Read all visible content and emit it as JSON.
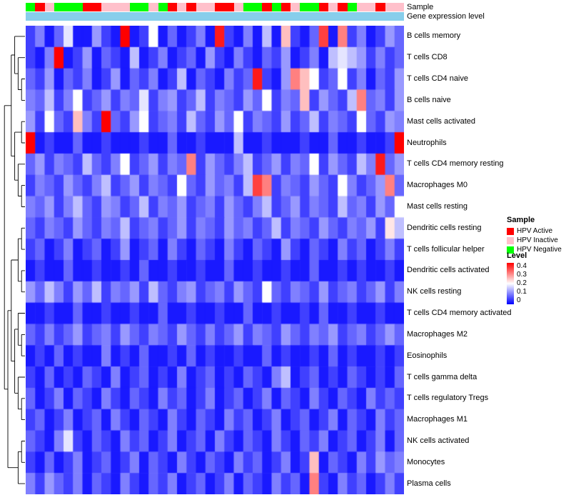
{
  "annotations": {
    "sample_label": "Sample",
    "gene_label": "Gene expression level",
    "gene_bar_color": "#87CEEB",
    "sample_colors": {
      "HPV Active": "#FF0000",
      "HPV Inactive": "#FFC0CB",
      "HPV Negative": "#00FF00"
    }
  },
  "legend": {
    "sample_title": "Sample",
    "sample_items": [
      {
        "label": "HPV Active",
        "color": "#FF0000"
      },
      {
        "label": "HPV Inactive",
        "color": "#FFC0CB"
      },
      {
        "label": "HPV Negative",
        "color": "#00FF00"
      }
    ],
    "level_title": "Level",
    "level_ticks": [
      "0.4",
      "0.3",
      "0.2",
      "0.1",
      "0"
    ],
    "level_colors": {
      "high": "#FF0000",
      "mid": "#FFFFFF",
      "low": "#0000FF"
    }
  },
  "chart_data": {
    "type": "heatmap",
    "title": "",
    "xlabel": "",
    "ylabel": "",
    "value_range": [
      0,
      0.4
    ],
    "color_scale": [
      {
        "value": 0,
        "color": "#0000FF"
      },
      {
        "value": 0.2,
        "color": "#FFFFFF"
      },
      {
        "value": 0.4,
        "color": "#FF0000"
      }
    ],
    "rows": [
      "B cells memory",
      "T cells CD8",
      "T cells CD4 naive",
      "B cells naive",
      "Mast cells activated",
      "Neutrophils",
      "T cells CD4 memory resting",
      "Macrophages M0",
      "Mast cells resting",
      "Dendritic cells resting",
      "T cells follicular helper",
      "Dendritic cells activated",
      "NK cells resting",
      "T cells CD4 memory activated",
      "Macrophages M2",
      "Eosinophils",
      "T cells gamma delta",
      "T cells regulatory  Tregs",
      "Macrophages M1",
      "NK cells activated",
      "Monocytes",
      "Plasma cells"
    ],
    "n_columns": 40,
    "column_annotation": [
      "HPV Negative",
      "HPV Active",
      "HPV Inactive",
      "HPV Negative",
      "HPV Negative",
      "HPV Negative",
      "HPV Active",
      "HPV Active",
      "HPV Inactive",
      "HPV Inactive",
      "HPV Inactive",
      "HPV Negative",
      "HPV Negative",
      "HPV Inactive",
      "HPV Negative",
      "HPV Active",
      "HPV Inactive",
      "HPV Active",
      "HPV Inactive",
      "HPV Inactive",
      "HPV Active",
      "HPV Active",
      "HPV Inactive",
      "HPV Negative",
      "HPV Negative",
      "HPV Active",
      "HPV Negative",
      "HPV Active",
      "HPV Inactive",
      "HPV Negative",
      "HPV Negative",
      "HPV Active",
      "HPV Inactive",
      "HPV Active",
      "HPV Negative",
      "HPV Inactive",
      "HPV Inactive",
      "HPV Active",
      "HPV Inactive",
      "HPV Inactive"
    ],
    "values": [
      [
        0.05,
        0.1,
        0.02,
        0.08,
        0.18,
        0.02,
        0.02,
        0.12,
        0.05,
        0.02,
        0.42,
        0.02,
        0.05,
        0.2,
        0.02,
        0.08,
        0.02,
        0.05,
        0.1,
        0.02,
        0.38,
        0.05,
        0.02,
        0.1,
        0.02,
        0.15,
        0.02,
        0.25,
        0.05,
        0.02,
        0.08,
        0.35,
        0.02,
        0.3,
        0.05,
        0.1,
        0.02,
        0.05,
        0.12,
        0.08
      ],
      [
        0.05,
        0.02,
        0.1,
        0.4,
        0.02,
        0.05,
        0.12,
        0.02,
        0.08,
        0.05,
        0.02,
        0.15,
        0.02,
        0.05,
        0.1,
        0.02,
        0.05,
        0.08,
        0.02,
        0.12,
        0.05,
        0.02,
        0.1,
        0.05,
        0.02,
        0.08,
        0.05,
        0.12,
        0.02,
        0.05,
        0.1,
        0.02,
        0.15,
        0.18,
        0.15,
        0.12,
        0.05,
        0.1,
        0.05,
        0.08
      ],
      [
        0.08,
        0.05,
        0.12,
        0.02,
        0.08,
        0.05,
        0.1,
        0.02,
        0.05,
        0.12,
        0.02,
        0.08,
        0.05,
        0.1,
        0.02,
        0.05,
        0.15,
        0.02,
        0.08,
        0.05,
        0.02,
        0.1,
        0.05,
        0.08,
        0.38,
        0.05,
        0.02,
        0.12,
        0.3,
        0.25,
        0.2,
        0.05,
        0.08,
        0.2,
        0.05,
        0.1,
        0.02,
        0.08,
        0.05,
        0.12
      ],
      [
        0.1,
        0.08,
        0.15,
        0.05,
        0.1,
        0.2,
        0.05,
        0.08,
        0.12,
        0.05,
        0.1,
        0.08,
        0.18,
        0.05,
        0.1,
        0.12,
        0.05,
        0.08,
        0.15,
        0.05,
        0.1,
        0.08,
        0.05,
        0.12,
        0.08,
        0.2,
        0.05,
        0.1,
        0.08,
        0.25,
        0.05,
        0.12,
        0.08,
        0.05,
        0.15,
        0.3,
        0.08,
        0.1,
        0.05,
        0.12
      ],
      [
        0.12,
        0.05,
        0.2,
        0.08,
        0.05,
        0.25,
        0.1,
        0.05,
        0.4,
        0.08,
        0.05,
        0.12,
        0.2,
        0.05,
        0.08,
        0.1,
        0.05,
        0.15,
        0.08,
        0.05,
        0.12,
        0.08,
        0.2,
        0.05,
        0.1,
        0.08,
        0.05,
        0.12,
        0.05,
        0.08,
        0.15,
        0.05,
        0.1,
        0.08,
        0.05,
        0.2,
        0.08,
        0.05,
        0.12,
        0.1
      ],
      [
        0.45,
        0.02,
        0.05,
        0.02,
        0.02,
        0.08,
        0.02,
        0.02,
        0.05,
        0.02,
        0.02,
        0.02,
        0.05,
        0.02,
        0.02,
        0.08,
        0.02,
        0.02,
        0.05,
        0.02,
        0.02,
        0.02,
        0.15,
        0.02,
        0.02,
        0.05,
        0.02,
        0.02,
        0.02,
        0.05,
        0.02,
        0.02,
        0.08,
        0.02,
        0.02,
        0.05,
        0.02,
        0.02,
        0.05,
        0.42
      ],
      [
        0.08,
        0.12,
        0.05,
        0.1,
        0.08,
        0.05,
        0.15,
        0.08,
        0.05,
        0.1,
        0.2,
        0.05,
        0.08,
        0.12,
        0.05,
        0.1,
        0.08,
        0.3,
        0.05,
        0.12,
        0.08,
        0.05,
        0.1,
        0.15,
        0.05,
        0.08,
        0.12,
        0.05,
        0.1,
        0.08,
        0.2,
        0.05,
        0.12,
        0.08,
        0.05,
        0.15,
        0.1,
        0.38,
        0.08,
        0.12
      ],
      [
        0.05,
        0.1,
        0.08,
        0.05,
        0.12,
        0.08,
        0.05,
        0.1,
        0.15,
        0.05,
        0.08,
        0.12,
        0.05,
        0.1,
        0.08,
        0.05,
        0.2,
        0.08,
        0.05,
        0.12,
        0.08,
        0.1,
        0.05,
        0.15,
        0.35,
        0.3,
        0.05,
        0.1,
        0.08,
        0.05,
        0.12,
        0.08,
        0.05,
        0.2,
        0.1,
        0.05,
        0.08,
        0.12,
        0.3,
        0.08
      ],
      [
        0.1,
        0.08,
        0.12,
        0.05,
        0.1,
        0.15,
        0.08,
        0.05,
        0.12,
        0.1,
        0.05,
        0.08,
        0.15,
        0.05,
        0.1,
        0.08,
        0.12,
        0.05,
        0.08,
        0.1,
        0.05,
        0.12,
        0.08,
        0.05,
        0.1,
        0.15,
        0.05,
        0.08,
        0.12,
        0.05,
        0.1,
        0.08,
        0.05,
        0.15,
        0.08,
        0.1,
        0.05,
        0.12,
        0.08,
        0.2
      ],
      [
        0.08,
        0.05,
        0.1,
        0.08,
        0.05,
        0.12,
        0.08,
        0.05,
        0.1,
        0.08,
        0.15,
        0.05,
        0.08,
        0.1,
        0.05,
        0.08,
        0.12,
        0.05,
        0.1,
        0.08,
        0.05,
        0.12,
        0.08,
        0.1,
        0.05,
        0.08,
        0.15,
        0.05,
        0.1,
        0.08,
        0.05,
        0.12,
        0.08,
        0.05,
        0.1,
        0.08,
        0.12,
        0.05,
        0.22,
        0.15
      ],
      [
        0.05,
        0.08,
        0.02,
        0.05,
        0.1,
        0.02,
        0.05,
        0.08,
        0.02,
        0.05,
        0.12,
        0.02,
        0.05,
        0.08,
        0.02,
        0.1,
        0.05,
        0.02,
        0.08,
        0.05,
        0.02,
        0.1,
        0.05,
        0.02,
        0.08,
        0.05,
        0.02,
        0.12,
        0.05,
        0.02,
        0.08,
        0.05,
        0.02,
        0.1,
        0.05,
        0.08,
        0.02,
        0.05,
        0.1,
        0.05
      ],
      [
        0.02,
        0.05,
        0.02,
        0.02,
        0.08,
        0.02,
        0.02,
        0.05,
        0.02,
        0.02,
        0.05,
        0.02,
        0.08,
        0.02,
        0.02,
        0.05,
        0.02,
        0.02,
        0.05,
        0.02,
        0.02,
        0.08,
        0.02,
        0.02,
        0.05,
        0.02,
        0.02,
        0.05,
        0.02,
        0.02,
        0.08,
        0.02,
        0.02,
        0.05,
        0.02,
        0.05,
        0.02,
        0.02,
        0.05,
        0.02
      ],
      [
        0.12,
        0.08,
        0.15,
        0.1,
        0.05,
        0.12,
        0.08,
        0.15,
        0.05,
        0.1,
        0.08,
        0.12,
        0.05,
        0.15,
        0.08,
        0.05,
        0.1,
        0.12,
        0.05,
        0.08,
        0.1,
        0.05,
        0.12,
        0.08,
        0.05,
        0.2,
        0.08,
        0.05,
        0.1,
        0.08,
        0.05,
        0.12,
        0.05,
        0.08,
        0.1,
        0.05,
        0.08,
        0.12,
        0.05,
        0.1
      ],
      [
        0.02,
        0.02,
        0.05,
        0.02,
        0.02,
        0.08,
        0.02,
        0.02,
        0.05,
        0.02,
        0.02,
        0.05,
        0.02,
        0.02,
        0.08,
        0.02,
        0.02,
        0.05,
        0.02,
        0.02,
        0.05,
        0.02,
        0.02,
        0.08,
        0.02,
        0.02,
        0.05,
        0.02,
        0.02,
        0.05,
        0.02,
        0.08,
        0.02,
        0.02,
        0.05,
        0.02,
        0.02,
        0.05,
        0.02,
        0.02
      ],
      [
        0.08,
        0.05,
        0.1,
        0.05,
        0.08,
        0.12,
        0.05,
        0.08,
        0.1,
        0.05,
        0.12,
        0.08,
        0.05,
        0.1,
        0.08,
        0.05,
        0.12,
        0.08,
        0.05,
        0.1,
        0.05,
        0.08,
        0.12,
        0.05,
        0.1,
        0.08,
        0.05,
        0.12,
        0.08,
        0.05,
        0.1,
        0.08,
        0.12,
        0.05,
        0.08,
        0.1,
        0.05,
        0.08,
        0.12,
        0.08
      ],
      [
        0.02,
        0.05,
        0.02,
        0.08,
        0.02,
        0.05,
        0.02,
        0.02,
        0.1,
        0.02,
        0.05,
        0.02,
        0.08,
        0.02,
        0.02,
        0.05,
        0.02,
        0.08,
        0.02,
        0.05,
        0.02,
        0.02,
        0.05,
        0.02,
        0.02,
        0.08,
        0.02,
        0.05,
        0.02,
        0.02,
        0.05,
        0.02,
        0.08,
        0.02,
        0.05,
        0.02,
        0.02,
        0.05,
        0.02,
        0.05
      ],
      [
        0.05,
        0.02,
        0.08,
        0.02,
        0.05,
        0.02,
        0.08,
        0.05,
        0.02,
        0.1,
        0.02,
        0.05,
        0.08,
        0.02,
        0.05,
        0.02,
        0.1,
        0.02,
        0.05,
        0.08,
        0.02,
        0.05,
        0.02,
        0.08,
        0.05,
        0.02,
        0.1,
        0.15,
        0.02,
        0.05,
        0.08,
        0.02,
        0.05,
        0.02,
        0.08,
        0.05,
        0.02,
        0.05,
        0.02,
        0.08
      ],
      [
        0.08,
        0.02,
        0.05,
        0.1,
        0.02,
        0.08,
        0.05,
        0.02,
        0.1,
        0.05,
        0.02,
        0.08,
        0.05,
        0.02,
        0.1,
        0.05,
        0.08,
        0.02,
        0.05,
        0.1,
        0.02,
        0.05,
        0.08,
        0.02,
        0.05,
        0.1,
        0.02,
        0.08,
        0.05,
        0.02,
        0.1,
        0.05,
        0.02,
        0.08,
        0.05,
        0.02,
        0.1,
        0.05,
        0.08,
        0.05
      ],
      [
        0.05,
        0.08,
        0.02,
        0.05,
        0.1,
        0.02,
        0.05,
        0.08,
        0.02,
        0.1,
        0.05,
        0.02,
        0.08,
        0.05,
        0.02,
        0.1,
        0.05,
        0.02,
        0.08,
        0.05,
        0.02,
        0.1,
        0.05,
        0.08,
        0.02,
        0.05,
        0.1,
        0.02,
        0.05,
        0.08,
        0.02,
        0.05,
        0.1,
        0.02,
        0.08,
        0.05,
        0.02,
        0.1,
        0.05,
        0.08
      ],
      [
        0.08,
        0.05,
        0.02,
        0.1,
        0.18,
        0.05,
        0.02,
        0.08,
        0.05,
        0.02,
        0.1,
        0.05,
        0.08,
        0.02,
        0.05,
        0.1,
        0.02,
        0.05,
        0.08,
        0.02,
        0.1,
        0.05,
        0.02,
        0.08,
        0.05,
        0.02,
        0.1,
        0.05,
        0.02,
        0.08,
        0.05,
        0.1,
        0.02,
        0.05,
        0.08,
        0.02,
        0.05,
        0.1,
        0.02,
        0.08
      ],
      [
        0.05,
        0.02,
        0.08,
        0.02,
        0.05,
        0.1,
        0.02,
        0.05,
        0.08,
        0.02,
        0.05,
        0.1,
        0.02,
        0.08,
        0.05,
        0.02,
        0.1,
        0.05,
        0.02,
        0.08,
        0.05,
        0.02,
        0.1,
        0.05,
        0.08,
        0.02,
        0.05,
        0.1,
        0.02,
        0.05,
        0.25,
        0.02,
        0.08,
        0.05,
        0.02,
        0.1,
        0.05,
        0.12,
        0.08,
        0.1
      ],
      [
        0.1,
        0.05,
        0.12,
        0.08,
        0.05,
        0.1,
        0.02,
        0.08,
        0.05,
        0.02,
        0.1,
        0.05,
        0.02,
        0.08,
        0.05,
        0.1,
        0.02,
        0.05,
        0.08,
        0.02,
        0.05,
        0.1,
        0.02,
        0.08,
        0.05,
        0.02,
        0.1,
        0.05,
        0.08,
        0.02,
        0.3,
        0.05,
        0.02,
        0.1,
        0.05,
        0.08,
        0.02,
        0.05,
        0.1,
        0.05
      ]
    ]
  }
}
